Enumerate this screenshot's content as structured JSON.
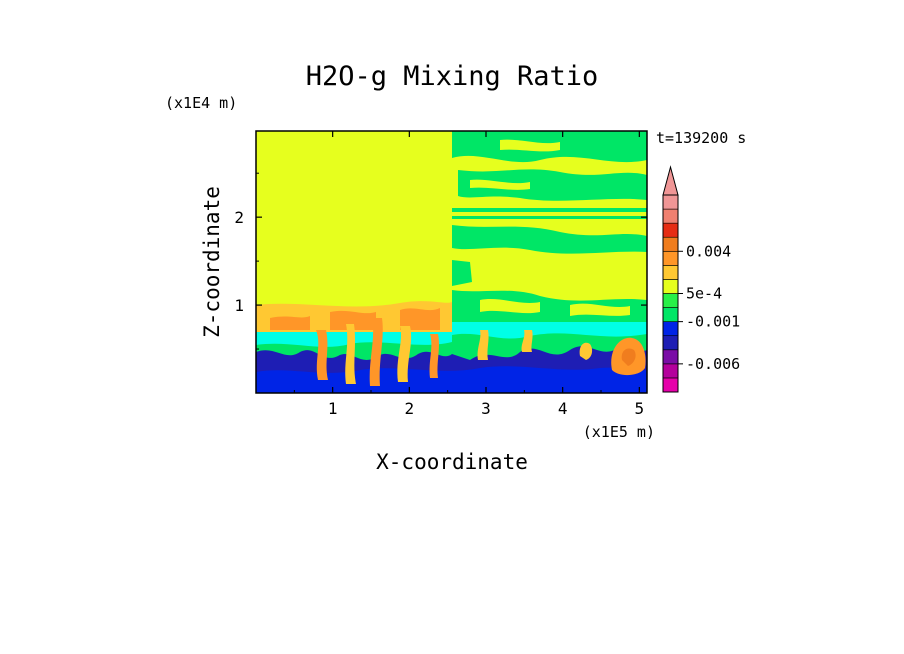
{
  "chart_data": {
    "type": "heatmap",
    "title": "H2O-g Mixing Ratio",
    "xlabel": "X-coordinate",
    "ylabel": "Z-coordinate",
    "x_scale_label": "(x1E5 m)",
    "y_scale_label": "(x1E4 m)",
    "time_label": "t=139200 s",
    "xlim": [
      0.0,
      5.1
    ],
    "ylim": [
      0.0,
      2.98
    ],
    "x_ticks": [
      1,
      2,
      3,
      4,
      5
    ],
    "y_ticks": [
      1,
      2
    ],
    "colorbar": {
      "colors": [
        "#e600aa",
        "#b4009c",
        "#7a0da6",
        "#1e1eb4",
        "#0024e6",
        "#00e666",
        "#28f048",
        "#e6ff1e",
        "#ffc832",
        "#ff9628",
        "#f07d1e",
        "#e62d14",
        "#f08070",
        "#f09696"
      ],
      "levels": [
        -0.009,
        -0.0075,
        -0.006,
        -0.0045,
        -0.003,
        -0.001,
        0,
        0.0005,
        0.001,
        0.0025,
        0.004,
        0.0055,
        0.007,
        0.0085,
        0.01
      ],
      "tick_labels": [
        "0.004",
        "5e-4",
        "-0.001",
        "-0.006"
      ],
      "tick_values": [
        0.004,
        0.0005,
        -0.001,
        -0.006
      ]
    }
  }
}
